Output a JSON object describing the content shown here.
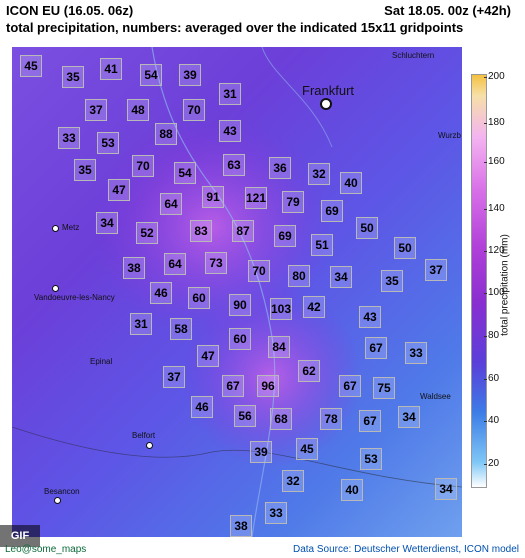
{
  "header": {
    "model": "ICON EU (16.05. 06z)",
    "subtitle": "total precipitation, numbers: averaged over the indicated 15x11 gridpoints",
    "valid": "Sat 18.05. 00z (+42h)"
  },
  "colorbar": {
    "label": "total precipitation (mm)",
    "ticks": [
      "200",
      "180",
      "160",
      "140",
      "120",
      "100",
      "80",
      "60",
      "40",
      "20"
    ]
  },
  "footer": {
    "credit": "Leo@some_maps",
    "source": "Data Source: Deutscher Wetterdienst, ICON model",
    "gif_badge": "GIF"
  },
  "cities": [
    {
      "name": "Frankfurt",
      "big": true
    },
    {
      "name": "Schluchtern",
      "big": false
    },
    {
      "name": "Wurzb",
      "big": false
    },
    {
      "name": "Metz",
      "big": false
    },
    {
      "name": "Vandoeuvre-les-Nancy",
      "big": false
    },
    {
      "name": "Epinal",
      "big": false
    },
    {
      "name": "Belfort",
      "big": false
    },
    {
      "name": "Besancon",
      "big": false
    },
    {
      "name": "Waldsee",
      "big": false
    }
  ],
  "cells": [
    "45",
    "35",
    "41",
    "54",
    "39",
    "31",
    "37",
    "48",
    "70",
    "33",
    "53",
    "88",
    "43",
    "35",
    "70",
    "54",
    "63",
    "36",
    "32",
    "40",
    "47",
    "91",
    "121",
    "79",
    "69",
    "34",
    "64",
    "50",
    "52",
    "83",
    "87",
    "69",
    "51",
    "50",
    "37",
    "38",
    "64",
    "73",
    "70",
    "80",
    "34",
    "35",
    "46",
    "60",
    "90",
    "103",
    "42",
    "43",
    "31",
    "58",
    "60",
    "84",
    "67",
    "33",
    "47",
    "62",
    "37",
    "67",
    "96",
    "67",
    "75",
    "46",
    "56",
    "68",
    "78",
    "67",
    "34",
    "39",
    "45",
    "53",
    "32",
    "40",
    "34",
    "33",
    "38"
  ],
  "colors": {
    "low": "#6fa0ee",
    "mid": "#6c3fd9",
    "high": "#d870e8"
  }
}
